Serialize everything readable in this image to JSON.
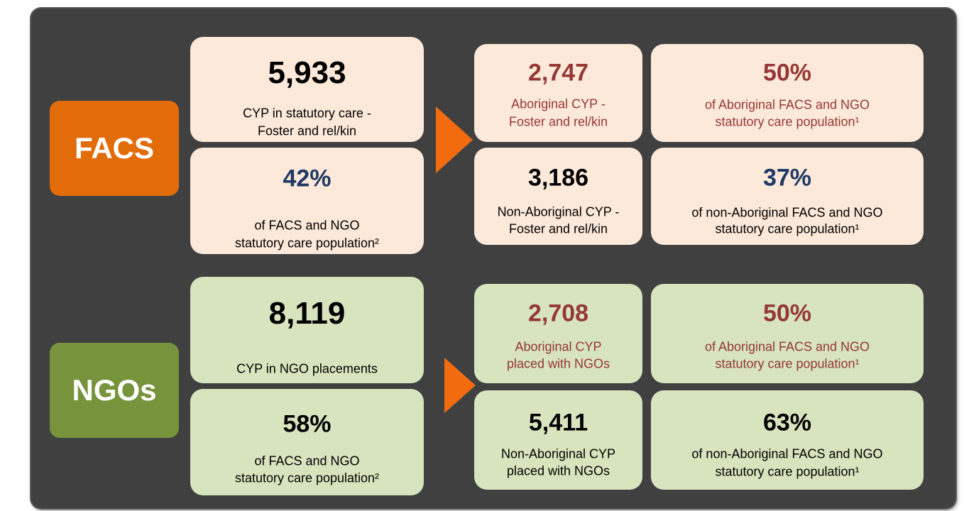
{
  "sections": [
    {
      "label": "FACS",
      "cards": [
        {
          "value": "5,933",
          "lines": [
            "CYP in statutory care -",
            "Foster and rel/kin"
          ]
        },
        {
          "value": "42%",
          "lines": [
            "of FACS and NGO",
            "statutory care population²"
          ]
        },
        {
          "value": "2,747",
          "lines": [
            "Aboriginal CYP -",
            "Foster and rel/kin"
          ]
        },
        {
          "value": "50%",
          "lines": [
            "of Aboriginal FACS and NGO",
            "statutory care population¹"
          ]
        },
        {
          "value": "3,186",
          "lines": [
            "Non-Aboriginal CYP -",
            "Foster and rel/kin"
          ]
        },
        {
          "value": "37%",
          "lines": [
            "of non-Aboriginal FACS and NGO",
            "statutory care population¹"
          ]
        }
      ]
    },
    {
      "label": "NGOs",
      "cards": [
        {
          "value": "8,119",
          "lines": [
            "CYP in NGO placements"
          ]
        },
        {
          "value": "58%",
          "lines": [
            "of FACS and NGO",
            "statutory care population²"
          ]
        },
        {
          "value": "2,708",
          "lines": [
            "Aboriginal CYP",
            "placed with NGOs"
          ]
        },
        {
          "value": "50%",
          "lines": [
            "of Aboriginal FACS and NGO",
            "statutory care population¹"
          ]
        },
        {
          "value": "5,411",
          "lines": [
            "Non-Aboriginal CYP",
            "placed with NGOs"
          ]
        },
        {
          "value": "63%",
          "lines": [
            "of non-Aboriginal FACS and NGO",
            "statutory care population¹"
          ]
        }
      ]
    }
  ]
}
